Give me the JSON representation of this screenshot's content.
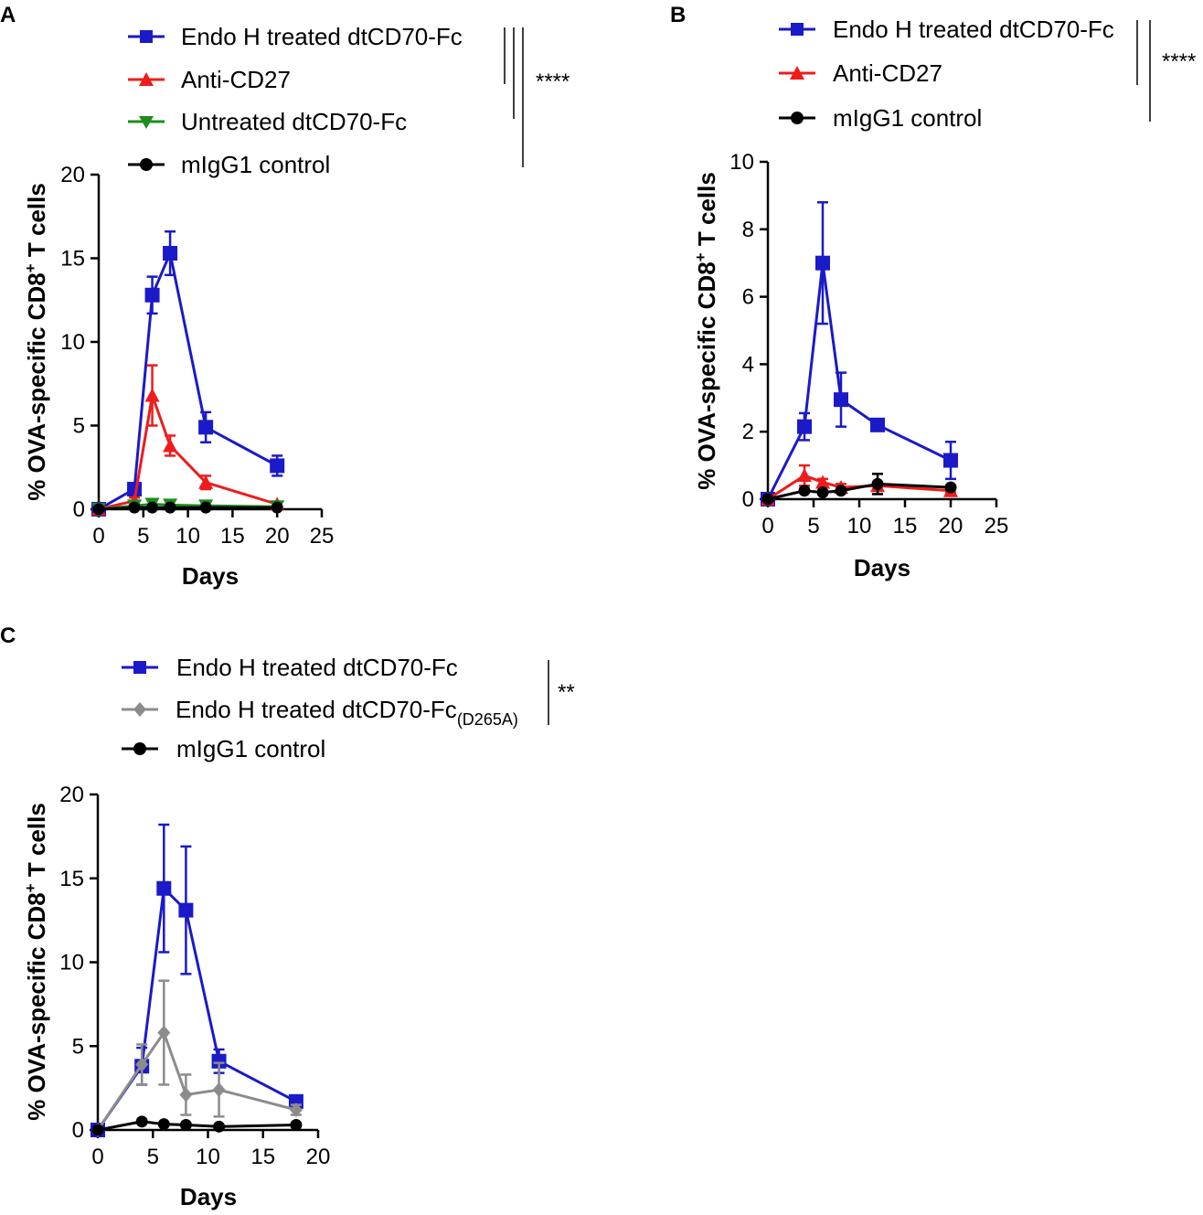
{
  "chart_data": [
    {
      "panel_label": "A",
      "type": "line",
      "title": "",
      "xlabel": "Days",
      "ylabel_parts": {
        "pre": "% OVA-specific CD8",
        "sup": "+",
        "post": " T cells"
      },
      "xlim": [
        0,
        25
      ],
      "ylim": [
        0,
        20
      ],
      "xticks": [
        0,
        5,
        10,
        15,
        20,
        25
      ],
      "yticks": [
        0,
        5,
        10,
        15,
        20
      ],
      "grid": false,
      "legend_position": "top",
      "significance": {
        "label": "****"
      },
      "series": [
        {
          "name": "Endo H treated dtCD70-Fc",
          "color": "#1a1ac8",
          "marker": "square",
          "x": [
            0,
            4,
            6,
            8,
            12,
            20
          ],
          "y": [
            0,
            1.2,
            12.8,
            15.3,
            4.9,
            2.6
          ],
          "err": [
            0,
            0.3,
            1.1,
            1.3,
            0.9,
            0.6
          ]
        },
        {
          "name": "Anti-CD27",
          "color": "#ee1c1c",
          "marker": "triangle-up",
          "x": [
            0,
            4,
            6,
            8,
            12,
            20
          ],
          "y": [
            0,
            0.5,
            6.8,
            3.8,
            1.6,
            0.3
          ],
          "err": [
            0,
            0.2,
            1.8,
            0.6,
            0.4,
            0.1
          ]
        },
        {
          "name": "Untreated dtCD70-Fc",
          "color": "#1e8c1e",
          "marker": "triangle-down",
          "x": [
            0,
            4,
            6,
            8,
            12,
            20
          ],
          "y": [
            0,
            0.2,
            0.3,
            0.25,
            0.2,
            0.15
          ],
          "err": [
            0,
            0,
            0,
            0,
            0,
            0
          ]
        },
        {
          "name": "mIgG1 control",
          "color": "#000000",
          "marker": "circle",
          "x": [
            0,
            4,
            6,
            8,
            12,
            20
          ],
          "y": [
            0,
            0.1,
            0.1,
            0.1,
            0.1,
            0.1
          ],
          "err": [
            0,
            0,
            0,
            0,
            0,
            0
          ]
        }
      ]
    },
    {
      "panel_label": "B",
      "type": "line",
      "title": "",
      "xlabel": "Days",
      "ylabel_parts": {
        "pre": "% OVA-specific CD8",
        "sup": "+",
        "post": " T cells"
      },
      "xlim": [
        0,
        25
      ],
      "ylim": [
        0,
        10
      ],
      "xticks": [
        0,
        5,
        10,
        15,
        20,
        25
      ],
      "yticks": [
        0,
        2,
        4,
        6,
        8,
        10
      ],
      "grid": false,
      "legend_position": "top",
      "significance": {
        "label": "****"
      },
      "series": [
        {
          "name": "Endo H treated dtCD70-Fc",
          "color": "#1a1ac8",
          "marker": "square",
          "x": [
            0,
            4,
            6,
            8,
            12,
            20
          ],
          "y": [
            0,
            2.15,
            7.0,
            2.95,
            2.2,
            1.15
          ],
          "err": [
            0,
            0.4,
            1.8,
            0.8,
            0.05,
            0.55
          ]
        },
        {
          "name": "Anti-CD27",
          "color": "#ee1c1c",
          "marker": "triangle-up",
          "x": [
            0,
            4,
            6,
            8,
            12,
            20
          ],
          "y": [
            0,
            0.7,
            0.5,
            0.35,
            0.4,
            0.25
          ],
          "err": [
            0,
            0.3,
            0.1,
            0.1,
            0.1,
            0.05
          ]
        },
        {
          "name": "mIgG1 control",
          "color": "#000000",
          "marker": "circle",
          "x": [
            0,
            4,
            6,
            8,
            12,
            20
          ],
          "y": [
            0,
            0.25,
            0.2,
            0.25,
            0.45,
            0.35
          ],
          "err": [
            0,
            0.05,
            0.05,
            0.05,
            0.3,
            0.05
          ]
        }
      ]
    },
    {
      "panel_label": "C",
      "type": "line",
      "title": "",
      "xlabel": "Days",
      "ylabel_parts": {
        "pre": "% OVA-specific CD8",
        "sup": "+",
        "post": " T cells"
      },
      "xlim": [
        0,
        20
      ],
      "ylim": [
        0,
        20
      ],
      "xticks": [
        0,
        5,
        10,
        15,
        20
      ],
      "yticks": [
        0,
        5,
        10,
        15,
        20
      ],
      "grid": false,
      "legend_position": "top",
      "significance": {
        "label": "**"
      },
      "series": [
        {
          "name": "Endo H treated dtCD70-Fc",
          "sub": "",
          "color": "#1a1ac8",
          "marker": "square",
          "x": [
            0,
            4,
            6,
            8,
            11,
            18
          ],
          "y": [
            0,
            3.8,
            14.4,
            13.1,
            4.1,
            1.7
          ],
          "err": [
            0,
            1.1,
            3.8,
            3.8,
            0.7,
            0.1
          ]
        },
        {
          "name": "Endo H treated dtCD70-Fc",
          "sub": "(D265A)",
          "color": "#8c8c8c",
          "marker": "diamond",
          "x": [
            0,
            4,
            6,
            8,
            11,
            18
          ],
          "y": [
            0,
            3.9,
            5.8,
            2.1,
            2.4,
            1.2
          ],
          "err": [
            0,
            1.2,
            3.1,
            1.2,
            1.6,
            0.3
          ]
        },
        {
          "name": "mIgG1 control",
          "sub": "",
          "color": "#000000",
          "marker": "circle",
          "x": [
            0,
            4,
            6,
            8,
            11,
            18
          ],
          "y": [
            0,
            0.5,
            0.35,
            0.3,
            0.2,
            0.3
          ],
          "err": [
            0,
            0,
            0,
            0,
            0,
            0
          ]
        }
      ]
    }
  ]
}
